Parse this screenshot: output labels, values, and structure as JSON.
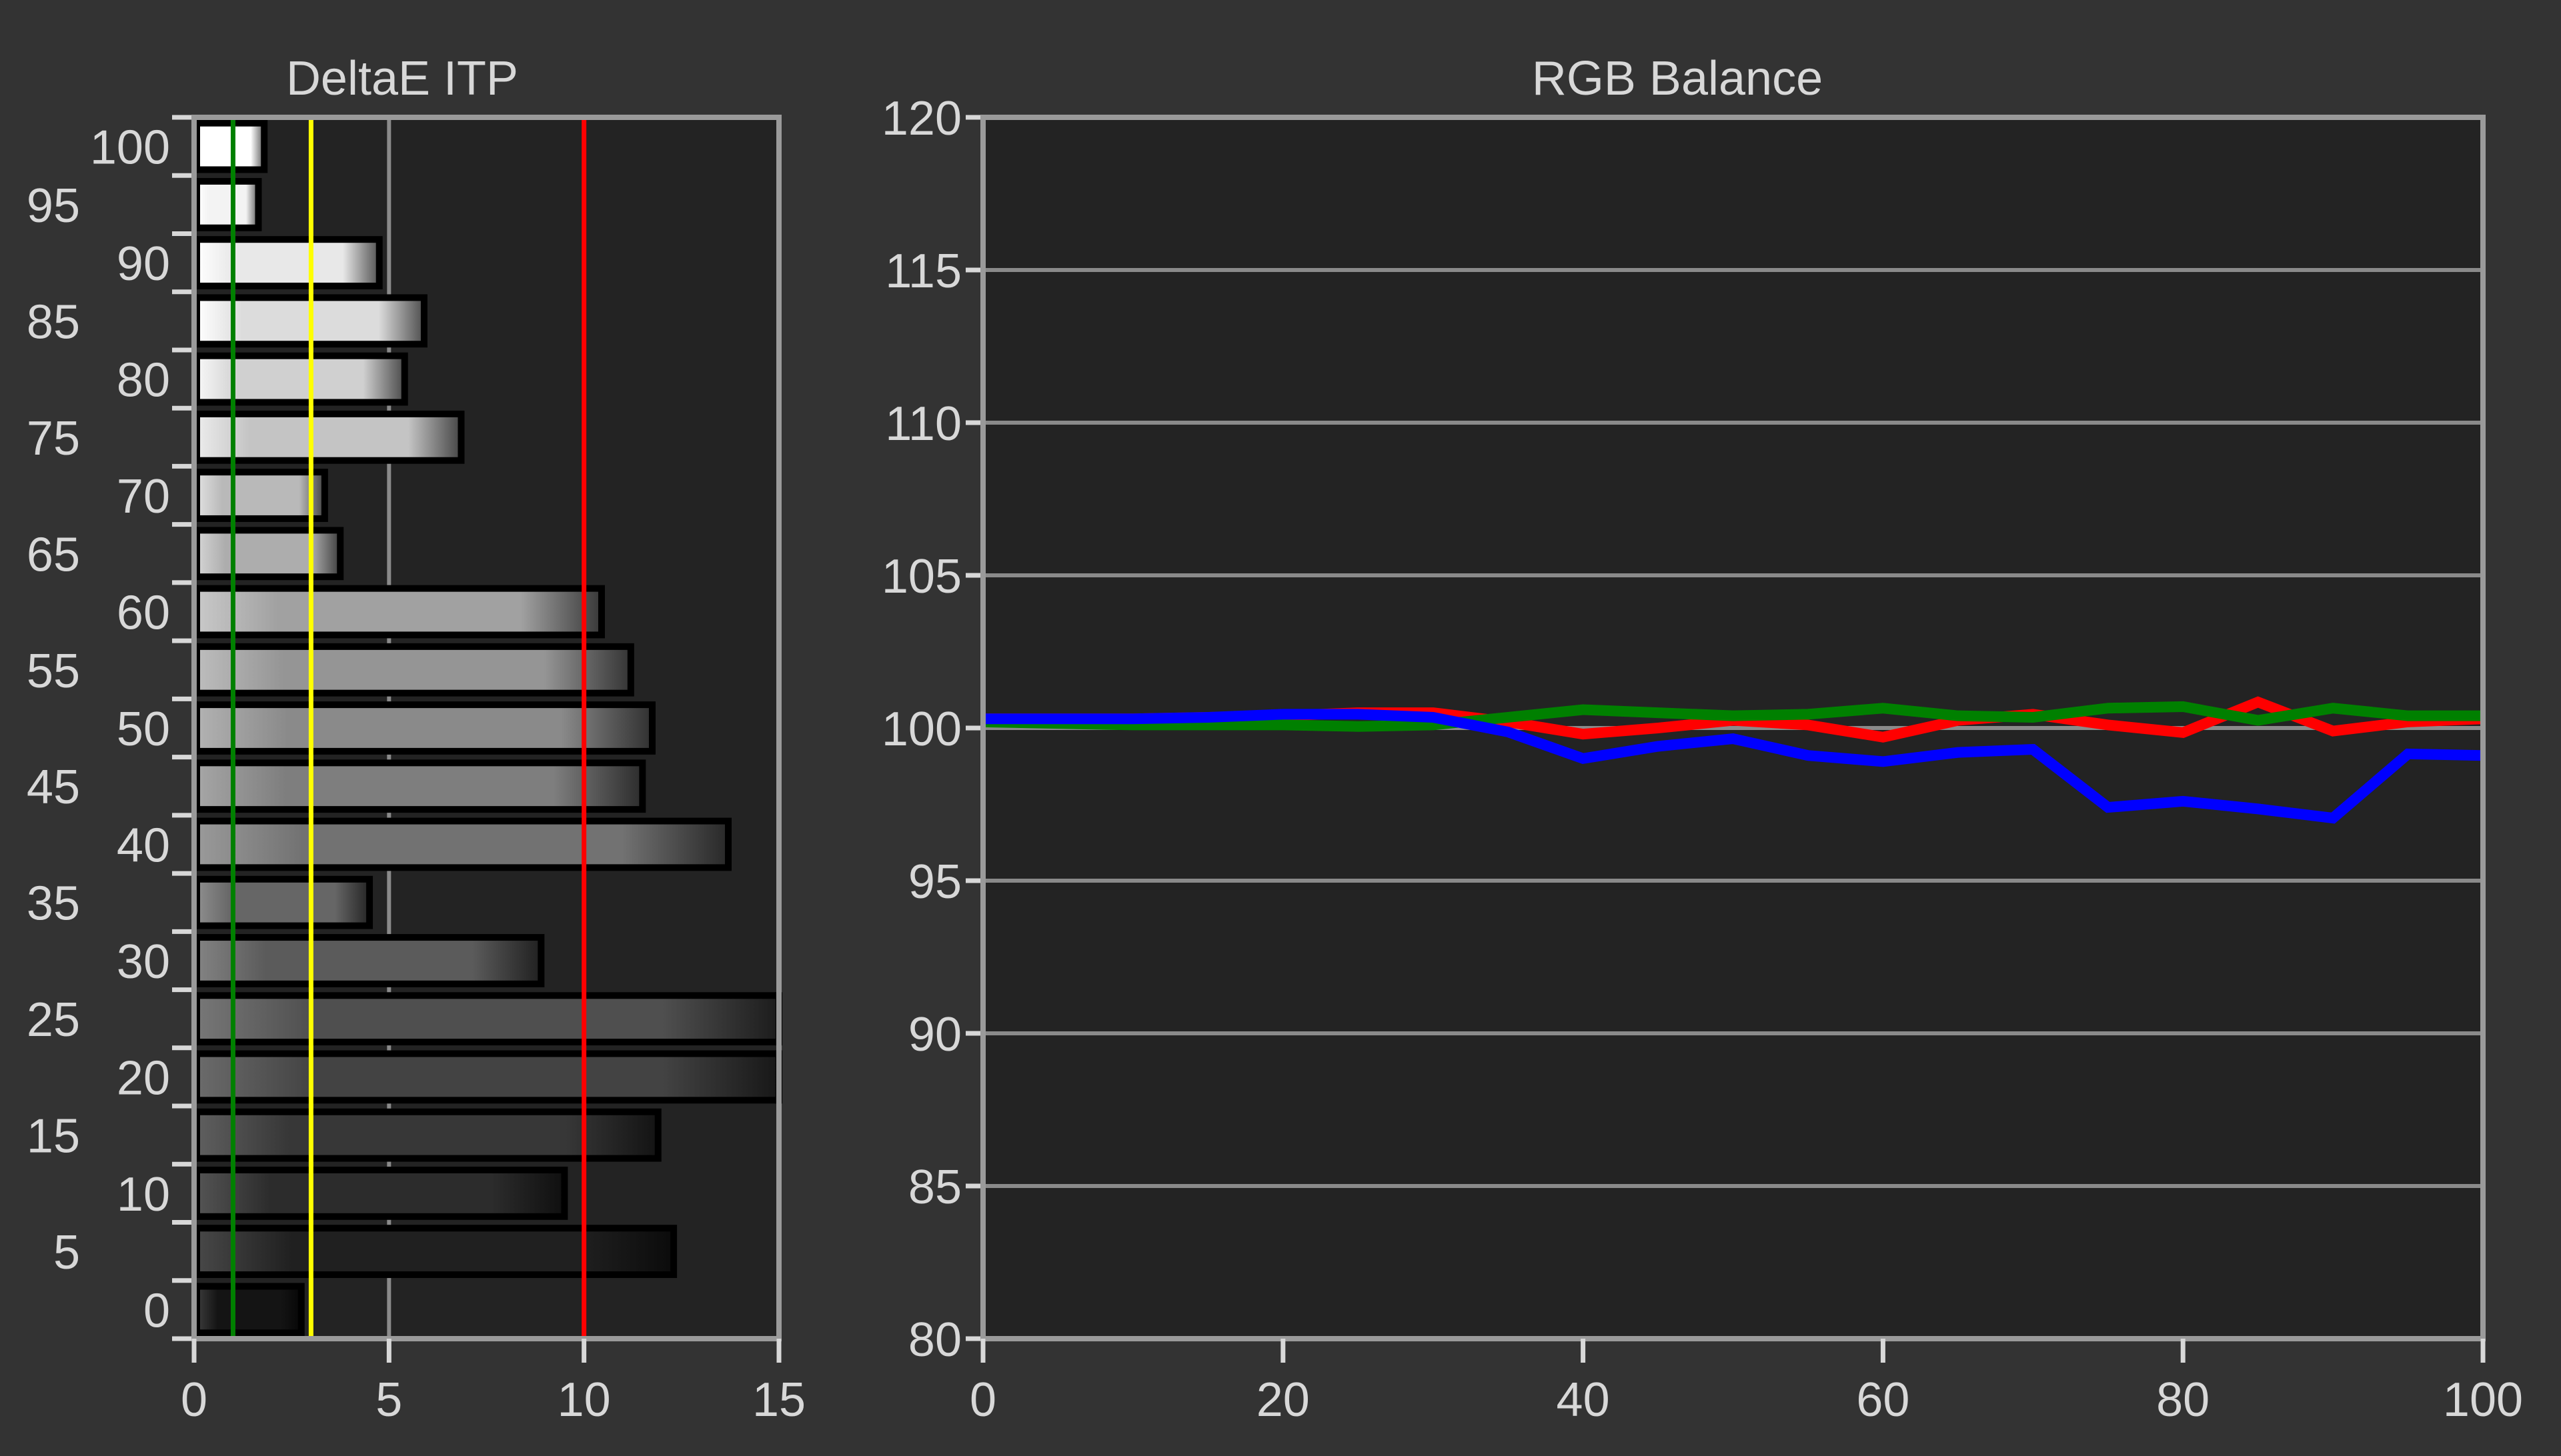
{
  "chart_data": [
    {
      "type": "bar",
      "orientation": "horizontal",
      "title": "DeltaE ITP",
      "categories": [
        0,
        5,
        10,
        15,
        20,
        25,
        30,
        35,
        40,
        45,
        50,
        55,
        60,
        65,
        70,
        75,
        80,
        85,
        90,
        95,
        100
      ],
      "values": [
        2.75,
        12.3,
        9.5,
        11.9,
        15,
        15,
        8.9,
        4.5,
        13.7,
        11.5,
        11.75,
        11.2,
        10.45,
        3.75,
        3.35,
        6.85,
        5.4,
        5.9,
        4.75,
        1.65,
        1.8
      ],
      "xlim": [
        0,
        15
      ],
      "xticks": [
        "0",
        "5",
        "10",
        "15"
      ],
      "yticks": [
        "0",
        "5",
        "10",
        "15",
        "20",
        "25",
        "30",
        "35",
        "40",
        "45",
        "50",
        "55",
        "60",
        "65",
        "70",
        "75",
        "80",
        "85",
        "90",
        "95",
        "100"
      ],
      "reference_lines": [
        {
          "value": 1,
          "color": "#008000"
        },
        {
          "value": 3,
          "color": "#ffff00"
        },
        {
          "value": 10,
          "color": "#ff0000"
        }
      ],
      "grid": true
    },
    {
      "type": "line",
      "title": "RGB Balance",
      "x": [
        0,
        5,
        10,
        15,
        20,
        25,
        30,
        35,
        40,
        45,
        50,
        55,
        60,
        65,
        70,
        75,
        80,
        85,
        90,
        95,
        100
      ],
      "series": [
        {
          "color": "#ff0000",
          "values": [
            100.3,
            100.3,
            100.3,
            100.35,
            100.4,
            100.5,
            100.5,
            100.2,
            99.8,
            100.0,
            100.25,
            100.1,
            99.7,
            100.25,
            100.45,
            100.1,
            99.85,
            100.85,
            99.9,
            100.2,
            100.3
          ]
        },
        {
          "color": "#008000",
          "values": [
            100.2,
            100.15,
            100.1,
            100.1,
            100.1,
            100.05,
            100.1,
            100.35,
            100.6,
            100.5,
            100.4,
            100.45,
            100.65,
            100.4,
            100.35,
            100.65,
            100.7,
            100.25,
            100.65,
            100.4,
            100.4
          ]
        },
        {
          "color": "#0000ff",
          "values": [
            100.3,
            100.3,
            100.3,
            100.35,
            100.45,
            100.45,
            100.35,
            99.87,
            99.0,
            99.4,
            99.65,
            99.1,
            98.9,
            99.2,
            99.3,
            97.4,
            97.6,
            97.35,
            97.05,
            99.15,
            99.1
          ]
        }
      ],
      "xlim": [
        0,
        100
      ],
      "ylim": [
        80,
        120
      ],
      "xticks": [
        "0",
        "20",
        "40",
        "60",
        "80",
        "100"
      ],
      "yticks": [
        "80",
        "85",
        "90",
        "95",
        "100",
        "105",
        "110",
        "115",
        "120"
      ],
      "grid": true
    }
  ]
}
